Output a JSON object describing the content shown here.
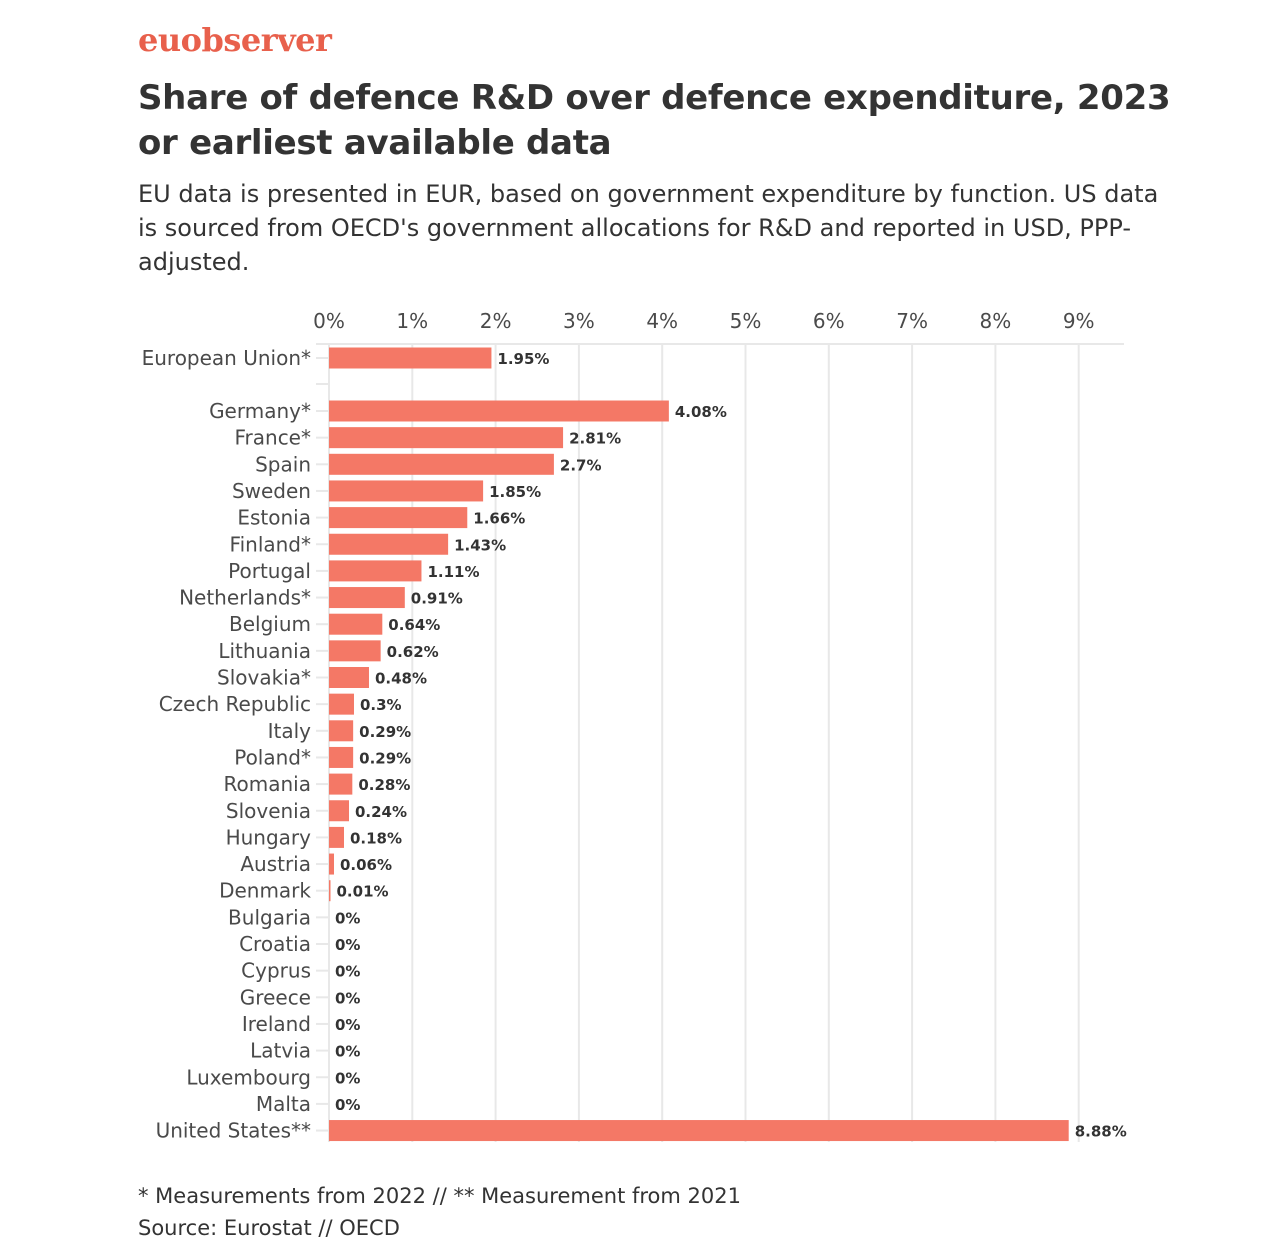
{
  "brand": {
    "name": "euobserver",
    "color": "#e8604c"
  },
  "header": {
    "title": "Share of defence R&D over defence expenditure, 2023 or earliest available data",
    "subtitle": "EU data is presented in EUR, based on government expenditure by function. US data is sourced from OECD's government allocations for R&D and reported in USD, PPP-adjusted."
  },
  "footer": {
    "note": "* Measurements from 2022 // ** Measurement from 2021",
    "source": "Source: Eurostat // OECD"
  },
  "chart_data": {
    "type": "bar",
    "orientation": "horizontal",
    "title": "Share of defence R&D over defence expenditure, 2023 or earliest available data",
    "xlabel": "",
    "ylabel": "",
    "xlim": [
      0,
      9.5
    ],
    "ticks": [
      0,
      1,
      2,
      3,
      4,
      5,
      6,
      7,
      8,
      9
    ],
    "tick_labels": [
      "0%",
      "1%",
      "2%",
      "3%",
      "4%",
      "5%",
      "6%",
      "7%",
      "8%",
      "9%"
    ],
    "axis_position": "top",
    "grid": true,
    "bar_color": "#f47866",
    "grid_color": "#e8e8e8",
    "categories": [
      "European Union*",
      "Germany*",
      "France*",
      "Spain",
      "Sweden",
      "Estonia",
      "Finland*",
      "Portugal",
      "Netherlands*",
      "Belgium",
      "Lithuania",
      "Slovakia*",
      "Czech Republic",
      "Italy",
      "Poland*",
      "Romania",
      "Slovenia",
      "Hungary",
      "Austria",
      "Denmark",
      "Bulgaria",
      "Croatia",
      "Cyprus",
      "Greece",
      "Ireland",
      "Latvia",
      "Luxembourg",
      "Malta",
      "United States**"
    ],
    "values": [
      1.95,
      4.08,
      2.81,
      2.7,
      1.85,
      1.66,
      1.43,
      1.11,
      0.91,
      0.64,
      0.62,
      0.48,
      0.3,
      0.29,
      0.29,
      0.28,
      0.24,
      0.18,
      0.06,
      0.01,
      0,
      0,
      0,
      0,
      0,
      0,
      0,
      0,
      8.88
    ],
    "value_labels": [
      "1.95%",
      "4.08%",
      "2.81%",
      "2.7%",
      "1.85%",
      "1.66%",
      "1.43%",
      "1.11%",
      "0.91%",
      "0.64%",
      "0.62%",
      "0.48%",
      "0.3%",
      "0.29%",
      "0.29%",
      "0.28%",
      "0.24%",
      "0.18%",
      "0.06%",
      "0.01%",
      "0%",
      "0%",
      "0%",
      "0%",
      "0%",
      "0%",
      "0%",
      "0%",
      "8.88%"
    ]
  }
}
